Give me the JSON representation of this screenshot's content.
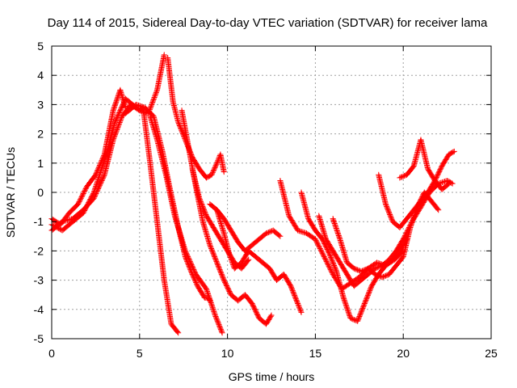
{
  "chart_data": {
    "type": "scatter",
    "title": "Day 114 of 2015, Sidereal Day-to-day VTEC variation (SDTVAR) for receiver lama",
    "xlabel": "GPS time / hours",
    "ylabel": "SDTVAR / TECUs",
    "xlim": [
      0,
      25
    ],
    "ylim": [
      -5,
      5
    ],
    "xticks": [
      0,
      5,
      10,
      15,
      20,
      25
    ],
    "yticks": [
      -5,
      -4,
      -3,
      -2,
      -1,
      0,
      1,
      2,
      3,
      4,
      5
    ],
    "grid": true,
    "legend": "none",
    "marker": "+",
    "color": "#ff0000",
    "series": [
      {
        "x": [
          0.0,
          0.5,
          1.0,
          1.5,
          2.0,
          2.5,
          3.0,
          3.5,
          3.9,
          4.2
        ],
        "y": [
          -0.9,
          -1.1,
          -0.7,
          -0.4,
          0.2,
          0.6,
          1.3,
          2.8,
          3.5,
          2.9
        ]
      },
      {
        "x": [
          0.0,
          0.6,
          1.2,
          1.8,
          2.4,
          3.0,
          3.5,
          4.0,
          4.5,
          5.0,
          5.5,
          6.0,
          6.4
        ],
        "y": [
          -1.3,
          -1.0,
          -0.9,
          -0.6,
          -0.2,
          0.6,
          1.8,
          2.6,
          3.0,
          2.8,
          2.7,
          3.5,
          4.7
        ]
      },
      {
        "x": [
          0.0,
          0.6,
          1.2,
          1.8,
          2.4,
          3.0,
          3.6,
          4.2,
          4.6,
          5.0,
          5.2,
          5.6,
          6.0,
          6.4,
          6.8,
          7.2
        ],
        "y": [
          -1.1,
          -1.3,
          -1.0,
          -0.7,
          0.0,
          1.1,
          2.4,
          3.2,
          3.0,
          2.8,
          2.9,
          1.0,
          -1.0,
          -3.0,
          -4.5,
          -4.8
        ]
      },
      {
        "x": [
          4.2,
          4.8,
          5.3,
          5.8,
          6.3,
          6.7,
          7.2,
          7.6,
          8.0,
          8.3,
          8.7,
          8.9,
          9.0
        ],
        "y": [
          2.7,
          3.0,
          2.9,
          2.6,
          1.4,
          0.2,
          -1.2,
          -2.2,
          -2.8,
          -3.2,
          -3.6,
          -3.6,
          -3.7
        ]
      },
      {
        "x": [
          5.6,
          6.0,
          6.5,
          7.0,
          7.6,
          8.2,
          8.8,
          9.3,
          9.7
        ],
        "y": [
          2.6,
          1.8,
          0.6,
          -0.8,
          -2.0,
          -2.8,
          -3.3,
          -4.2,
          -4.8
        ]
      },
      {
        "x": [
          6.6,
          6.9,
          7.2,
          7.6,
          8.0,
          8.4,
          8.8,
          9.1,
          9.4,
          9.6,
          9.8
        ],
        "y": [
          4.6,
          3.1,
          2.4,
          1.8,
          1.2,
          0.8,
          0.5,
          0.6,
          1.0,
          1.3,
          0.7
        ]
      },
      {
        "x": [
          7.4,
          7.8,
          8.2,
          8.6,
          9.0,
          9.4,
          9.8,
          10.2,
          10.6,
          11.0,
          11.4,
          11.8,
          12.2,
          12.5
        ],
        "y": [
          2.8,
          1.5,
          0.2,
          -1.0,
          -1.8,
          -2.4,
          -3.0,
          -3.5,
          -3.7,
          -3.5,
          -3.8,
          -4.3,
          -4.5,
          -4.2
        ]
      },
      {
        "x": [
          8.0,
          8.4,
          8.8,
          9.2,
          9.6,
          10.0,
          10.4,
          10.8,
          11.2
        ],
        "y": [
          0.8,
          -0.2,
          -0.8,
          -1.2,
          -1.6,
          -2.0,
          -2.4,
          -2.6,
          -2.3
        ]
      },
      {
        "x": [
          9.0,
          9.4,
          9.8,
          10.2,
          10.6,
          11.0,
          11.4,
          11.8,
          12.2,
          12.6,
          13.0
        ],
        "y": [
          -0.4,
          -0.6,
          -0.9,
          -1.3,
          -1.7,
          -2.0,
          -1.8,
          -1.6,
          -1.4,
          -1.3,
          -1.5
        ]
      },
      {
        "x": [
          9.4,
          9.8,
          10.1,
          10.4,
          10.8,
          11.2,
          11.6,
          12.0,
          12.4,
          12.8,
          13.2,
          13.6,
          14.0,
          14.2
        ],
        "y": [
          -0.6,
          -1.4,
          -2.1,
          -2.6,
          -2.4,
          -2.0,
          -2.2,
          -2.4,
          -2.6,
          -3.0,
          -2.8,
          -3.2,
          -3.8,
          -4.1
        ]
      },
      {
        "x": [
          13.0,
          13.5,
          14.0,
          14.5,
          15.0,
          15.5,
          16.0,
          16.5,
          17.0,
          17.5,
          18.0,
          18.5,
          19.0,
          19.5,
          20.0
        ],
        "y": [
          0.4,
          -0.8,
          -1.3,
          -1.4,
          -1.6,
          -2.2,
          -2.8,
          -3.3,
          -3.1,
          -2.9,
          -2.6,
          -2.4,
          -2.5,
          -2.3,
          -2.0
        ]
      },
      {
        "x": [
          14.2,
          14.6,
          15.0,
          15.4,
          15.8,
          16.2,
          16.6,
          17.0,
          17.4,
          17.8,
          18.2,
          18.6,
          19.0,
          19.4,
          19.8,
          20.2
        ],
        "y": [
          0.0,
          -0.9,
          -1.3,
          -1.6,
          -2.1,
          -2.7,
          -3.6,
          -4.3,
          -4.4,
          -3.8,
          -3.2,
          -2.8,
          -2.5,
          -2.3,
          -2.0,
          -1.6
        ]
      },
      {
        "x": [
          15.2,
          15.6,
          16.0,
          16.4,
          16.8,
          17.2,
          17.6,
          18.0,
          18.4,
          18.8,
          19.2,
          19.6,
          20.0,
          20.5,
          21.0,
          21.5,
          22.0,
          22.5,
          22.8
        ],
        "y": [
          -0.8,
          -1.6,
          -2.0,
          -2.4,
          -2.8,
          -3.2,
          -3.0,
          -2.8,
          -2.6,
          -2.5,
          -2.3,
          -2.0,
          -1.6,
          -1.0,
          -0.5,
          0.0,
          0.3,
          0.4,
          0.3
        ]
      },
      {
        "x": [
          16.0,
          16.4,
          16.8,
          17.2,
          17.6,
          18.0,
          18.4,
          18.8,
          19.2,
          19.6,
          20.0,
          20.4,
          20.8,
          21.2,
          21.6,
          22.0
        ],
        "y": [
          -0.9,
          -1.6,
          -2.4,
          -2.6,
          -2.7,
          -2.6,
          -2.8,
          -2.9,
          -2.8,
          -2.5,
          -2.2,
          -1.2,
          -0.5,
          0.0,
          -0.3,
          -0.6
        ]
      },
      {
        "x": [
          18.6,
          19.0,
          19.4,
          19.8,
          20.2,
          20.6,
          21.0,
          21.4,
          21.8,
          22.2,
          22.6,
          22.9
        ],
        "y": [
          0.6,
          -0.4,
          -1.0,
          -1.2,
          -0.9,
          -0.6,
          -0.3,
          0.0,
          0.4,
          0.9,
          1.3,
          1.4
        ]
      },
      {
        "x": [
          19.8,
          20.2,
          20.6,
          21.0,
          21.4,
          21.8,
          22.2,
          22.6
        ],
        "y": [
          0.5,
          0.6,
          0.9,
          1.8,
          0.8,
          0.4,
          0.1,
          0.3
        ]
      }
    ]
  }
}
